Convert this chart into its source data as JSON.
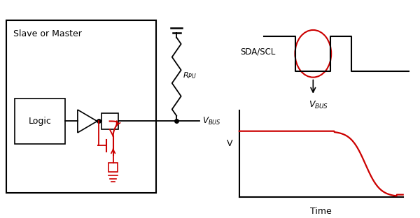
{
  "bg_color": "#ffffff",
  "text_slave_master": "Slave or Master",
  "text_logic": "Logic",
  "text_rpu": "R_PU",
  "text_sda_scl": "SDA/SCL",
  "text_v": "V",
  "text_time": "Time",
  "circuit_color": "#000000",
  "red_color": "#cc0000"
}
